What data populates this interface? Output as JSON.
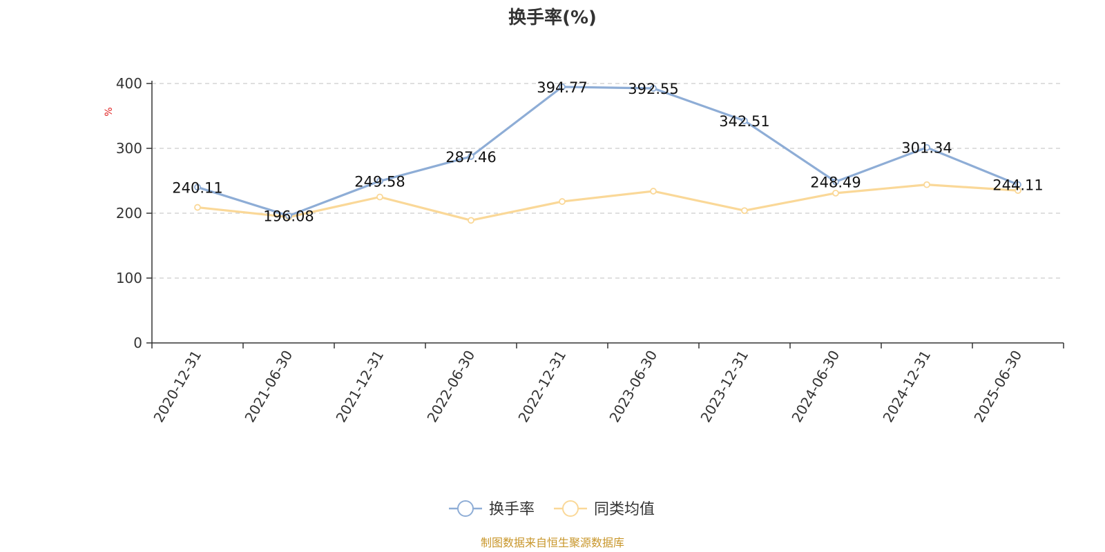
{
  "chart_data": {
    "type": "line",
    "title": "换手率(%)",
    "ylabel": "%",
    "xlabel": "",
    "ylim": [
      0,
      400
    ],
    "yticks": [
      0,
      100,
      200,
      300,
      400
    ],
    "grid": true,
    "legend_position": "bottom",
    "categories": [
      "2020-12-31",
      "2021-06-30",
      "2021-12-31",
      "2022-06-30",
      "2022-12-31",
      "2023-06-30",
      "2023-12-31",
      "2024-06-30",
      "2024-12-31",
      "2025-06-30"
    ],
    "series": [
      {
        "name": "换手率",
        "color": "#8eadd6",
        "show_labels": true,
        "values": [
          240.11,
          196.08,
          249.58,
          287.46,
          394.77,
          392.55,
          342.51,
          248.49,
          301.34,
          244.11
        ],
        "labels": [
          "240.11",
          "196.08",
          "249.58",
          "287.46",
          "394.77",
          "392.55",
          "342.51",
          "248.49",
          "301.34",
          "244.11"
        ]
      },
      {
        "name": "同类均值",
        "color": "#fad898",
        "show_labels": false,
        "values": [
          209,
          194,
          225,
          189,
          218,
          234,
          204,
          231,
          244,
          235
        ]
      }
    ]
  },
  "source_text": "制图数据来自恒生聚源数据库"
}
